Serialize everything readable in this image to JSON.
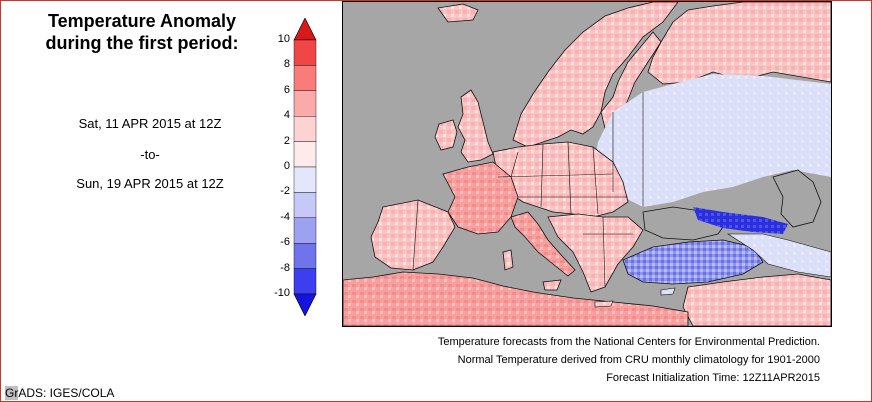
{
  "title_line1": "Temperature Anomaly",
  "title_line2": "during the first period:",
  "start_date": "Sat, 11 APR 2015 at 12Z",
  "separator": "-to-",
  "end_date": "Sun, 19 APR 2015 at 12Z",
  "colorbar": {
    "labels": [
      "10",
      "8",
      "6",
      "4",
      "2",
      "0",
      "-2",
      "-4",
      "-6",
      "-8",
      "-10"
    ],
    "colors": [
      "#d61a1a",
      "#f04646",
      "#f87c7c",
      "#fbaaaa",
      "#fdd2d2",
      "#fdeaea",
      "#e4e6fb",
      "#c6c9f7",
      "#9da2f0",
      "#6f74ea",
      "#3b3ff0",
      "#1414e0"
    ]
  },
  "footnotes": [
    "Temperature forecasts from the National Centers for Environmental Prediction.",
    "Normal Temperature derived from CRU monthly climatology for 1901-2000",
    "Forecast Initialization Time: 12Z11APR2015"
  ],
  "credit_gr": "Gr",
  "credit_rest": "ADS: IGES/COLA",
  "map_colors": {
    "sea": "#a6a6a6",
    "border": "#111111"
  }
}
